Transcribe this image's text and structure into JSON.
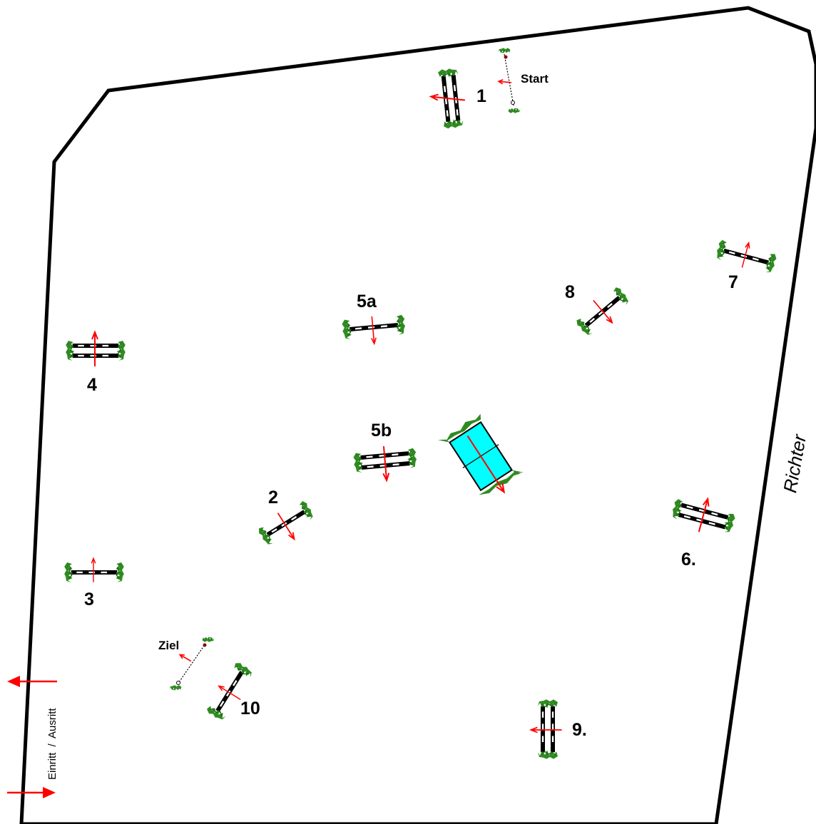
{
  "arena": {
    "judge_label": "Richter",
    "gate_label_entry": "Einritt",
    "gate_label_sep": "/",
    "gate_label_exit": "Ausritt"
  },
  "lines": {
    "start": "Start",
    "finish": "Ziel"
  },
  "obstacles": [
    {
      "id": "1",
      "label": "1",
      "kind": "oxer"
    },
    {
      "id": "2",
      "label": "2",
      "kind": "vertical"
    },
    {
      "id": "3",
      "label": "3",
      "kind": "vertical"
    },
    {
      "id": "4",
      "label": "4",
      "kind": "oxer"
    },
    {
      "id": "5a",
      "label": "5a",
      "kind": "vertical"
    },
    {
      "id": "5b",
      "label": "5b",
      "kind": "oxer"
    },
    {
      "id": "6",
      "label": "6.",
      "kind": "oxer"
    },
    {
      "id": "7",
      "label": "7",
      "kind": "vertical"
    },
    {
      "id": "8",
      "label": "8",
      "kind": "vertical"
    },
    {
      "id": "9",
      "label": "9.",
      "kind": "oxer"
    },
    {
      "id": "10",
      "label": "10",
      "kind": "vertical"
    }
  ],
  "water": {
    "kind": "water-jump",
    "color": "#00ffff"
  },
  "colors": {
    "arrow": "#ff0000",
    "pole": "#000000",
    "pole_stripe": "#ffffff",
    "wing": "#2e8b1f",
    "wing_dark": "#1a6b12",
    "border": "#000000"
  }
}
